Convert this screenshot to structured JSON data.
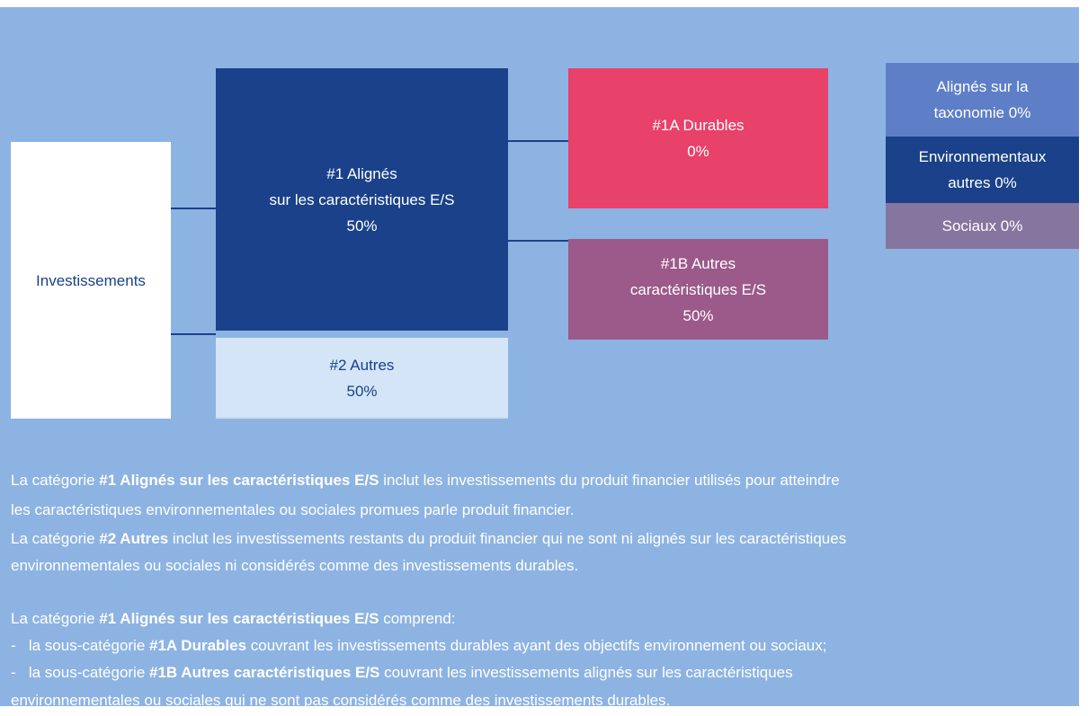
{
  "nodes": [
    {
      "lines": [
        "Investissements"
      ]
    },
    {
      "lines": [
        "#1 Alignés",
        "sur les caractéristiques E/S",
        "50%"
      ]
    },
    {
      "lines": [
        "#2 Autres",
        "50%"
      ]
    },
    {
      "lines": [
        "#1A Durables",
        "0%"
      ]
    },
    {
      "lines": [
        "#1B Autres",
        "caractéristiques E/S",
        "50%"
      ]
    },
    {
      "lines": [
        "Alignés sur la",
        "taxonomie 0%"
      ]
    },
    {
      "lines": [
        "Environnementaux",
        "autres 0%"
      ]
    },
    {
      "lines": [
        "Sociaux  0%"
      ]
    }
  ],
  "text": [
    [
      "La catégorie ",
      "#1 Alignés sur les caractéristiques E/S",
      " inclut les investissements du produit financier utilisés pour atteindre"
    ],
    [
      "les caractéristiques environnementales ou sociales promues parle produit financier."
    ],
    [
      "La catégorie ",
      "#2 Autres",
      " inclut les investissements restants du produit financier qui ne sont ni alignés sur les caractéristiques"
    ],
    [
      "environnementales ou sociales ni considérés comme des investissements durables."
    ],
    [
      "La catégorie ",
      "#1 Alignés sur les caractéristiques E/S",
      " comprend:"
    ],
    [
      "-   la sous-catégorie ",
      "#1A Durables",
      " couvrant les investissements durables ayant des objectifs environnement ou sociaux;"
    ],
    [
      "-   la sous-catégorie ",
      "#1B Autres caractéristiques E/S",
      " couvrant les investissements alignés sur les caractéristiques"
    ],
    [
      "environnementales ou sociales qui ne sont pas considérés comme des investissements durables."
    ]
  ]
}
